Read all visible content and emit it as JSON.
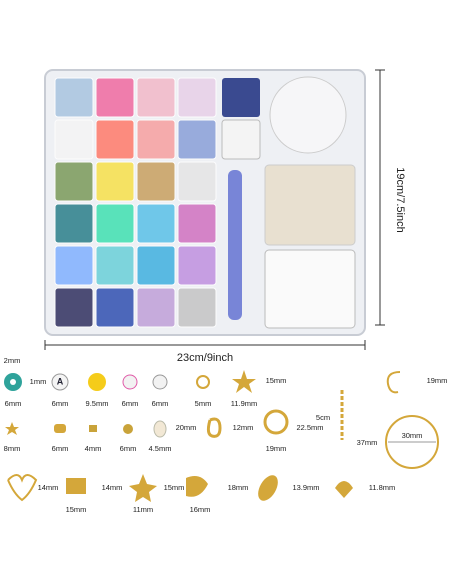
{
  "dimensions": {
    "height": "19cm/7.5inch",
    "width": "23cm/9inch"
  },
  "bead_letter": "A",
  "labels": [
    "2mm",
    "1mm",
    "6mm",
    "6mm",
    "9.5mm",
    "6mm",
    "6mm",
    "5mm",
    "11.9mm",
    "15mm",
    "19mm",
    "8mm",
    "6mm",
    "4mm",
    "6mm",
    "4.5mm",
    "20mm",
    "12mm",
    "5cm",
    "22.5mm",
    "19mm",
    "37mm",
    "30mm",
    "14mm",
    "15mm",
    "14mm",
    "11mm",
    "15mm",
    "16mm",
    "18mm",
    "13.9mm",
    "11.8mm"
  ]
}
